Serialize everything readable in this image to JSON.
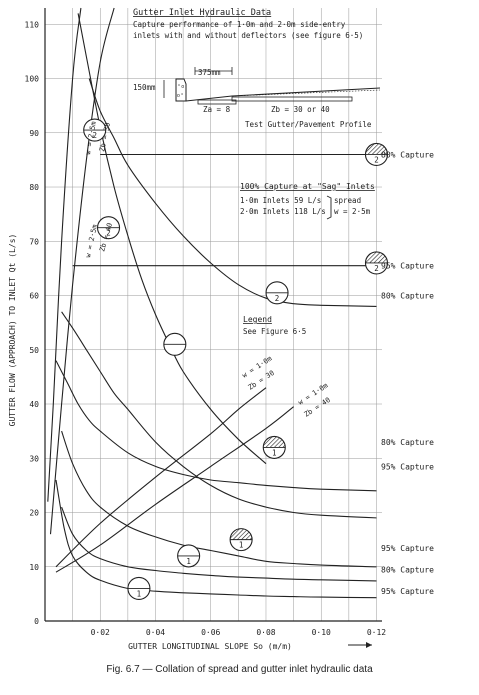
{
  "chart_data": {
    "type": "line",
    "xlabel": "GUTTER LONGITUDINAL SLOPE  So (m/m)",
    "ylabel": "GUTTER FLOW (APPROACH) TO INLET Qt (L/s)",
    "x_ticks": [
      "0·02",
      "0·04",
      "0·06",
      "0·08",
      "0·10",
      "0·12"
    ],
    "y_ticks": [
      "0",
      "10",
      "20",
      "30",
      "40",
      "50",
      "60",
      "70",
      "80",
      "90",
      "100",
      "110"
    ],
    "xlim": [
      0,
      0.122
    ],
    "ylim": [
      0,
      113
    ],
    "grid": true,
    "series": [
      {
        "name": "",
        "label": "80% Capture",
        "inlet": "2",
        "x": [
          0.016,
          0.02,
          0.025,
          0.03,
          0.04,
          0.05,
          0.06,
          0.07,
          0.08,
          0.09,
          0.1,
          0.12
        ],
        "y": [
          100,
          94,
          89,
          84,
          77,
          71,
          66,
          62,
          59.5,
          58.5,
          58.2,
          58
        ]
      },
      {
        "name": "",
        "label": "95% Capture",
        "inlet": "2",
        "x": [
          0.006,
          0.01,
          0.015,
          0.02,
          0.025,
          0.03,
          0.04,
          0.05,
          0.06,
          0.07,
          0.08,
          0.09,
          0.1,
          0.12
        ],
        "y": [
          57,
          54,
          50,
          46,
          42,
          39,
          33,
          28.5,
          25,
          22.5,
          21,
          20,
          19.5,
          19
        ]
      },
      {
        "name": "",
        "label": "80% Capture",
        "inlet": "1",
        "x": [
          0.004,
          0.008,
          0.012,
          0.016,
          0.02,
          0.03,
          0.04,
          0.05,
          0.06,
          0.07,
          0.08,
          0.09,
          0.1,
          0.12
        ],
        "y": [
          48,
          44,
          40,
          37,
          35,
          31,
          28.5,
          27,
          26,
          25.5,
          25,
          24.6,
          24.3,
          24
        ]
      },
      {
        "name": "",
        "label": "95% Capture",
        "inlet": "1",
        "x": [
          0.006,
          0.01,
          0.015,
          0.02,
          0.03,
          0.04,
          0.05,
          0.06,
          0.07,
          0.08,
          0.09,
          0.1,
          0.12
        ],
        "y": [
          35,
          29,
          24,
          21,
          17.5,
          15.5,
          14,
          13,
          12,
          11,
          10.6,
          10.3,
          10
        ]
      },
      {
        "name": "",
        "label": "",
        "inlet": "1",
        "x": [
          0.004,
          0.007,
          0.01,
          0.015,
          0.02,
          0.03,
          0.04,
          0.05,
          0.06,
          0.07,
          0.08,
          0.09,
          0.1,
          0.12
        ],
        "y": [
          26,
          17,
          12,
          9,
          7.5,
          6,
          5.5,
          5.2,
          5,
          4.8,
          4.6,
          4.5,
          4.4,
          4.3
        ]
      },
      {
        "name": "",
        "label": "",
        "inlet": "1",
        "x": [
          0.006,
          0.01,
          0.015,
          0.02,
          0.03,
          0.04,
          0.05,
          0.06,
          0.07,
          0.08,
          0.09,
          0.1,
          0.12
        ],
        "y": [
          21,
          16,
          13,
          11.5,
          10,
          9.3,
          8.8,
          8.4,
          8.1,
          7.9,
          7.7,
          7.6,
          7.4
        ]
      },
      {
        "name": "",
        "label": "",
        "inlet": "2",
        "x": [
          0.012,
          0.015,
          0.02,
          0.025,
          0.03,
          0.035,
          0.04,
          0.045,
          0.05,
          0.06,
          0.07,
          0.08
        ],
        "y": [
          112,
          104,
          91,
          80,
          71,
          63,
          56.5,
          51,
          46,
          39,
          33.5,
          29
        ]
      },
      {
        "name": "",
        "label": "80% Capture",
        "inlet": "2",
        "x": [
          0.02,
          0.12
        ],
        "y": [
          86,
          86
        ]
      },
      {
        "name": "",
        "label": "95% Capture",
        "inlet": "2",
        "x": [
          0.01,
          0.12
        ],
        "y": [
          65.5,
          65.5
        ]
      },
      {
        "name": "w = 2·5 m, Zb = 30",
        "x": [
          0.001,
          0.003,
          0.006,
          0.01,
          0.013
        ],
        "y": [
          22,
          40,
          70,
          100,
          113
        ]
      },
      {
        "name": "w = 2·5 m, Zb = 40",
        "x": [
          0.002,
          0.006,
          0.01,
          0.015,
          0.02,
          0.025
        ],
        "y": [
          16,
          40,
          62,
          85,
          103,
          113
        ]
      },
      {
        "name": "w = 1·0 m, Zb = 30",
        "x": [
          0.004,
          0.02,
          0.04,
          0.06,
          0.07,
          0.08
        ],
        "y": [
          10,
          18,
          26.5,
          34.5,
          39,
          43
        ]
      },
      {
        "name": "w = 1·0 m, Zb = 40",
        "x": [
          0.004,
          0.02,
          0.04,
          0.06,
          0.08,
          0.09
        ],
        "y": [
          9,
          14,
          21.5,
          28.5,
          35.5,
          39.5
        ]
      }
    ],
    "markers": [
      {
        "x": 0.018,
        "y": 90.5,
        "label": "2",
        "hatched": false
      },
      {
        "x": 0.023,
        "y": 72.5,
        "label": "2",
        "hatched": false
      },
      {
        "x": 0.047,
        "y": 51,
        "label": "",
        "hatched": false
      },
      {
        "x": 0.084,
        "y": 60.5,
        "label": "2",
        "hatched": false
      },
      {
        "x": 0.12,
        "y": 86,
        "label": "2",
        "hatched": true
      },
      {
        "x": 0.12,
        "y": 66,
        "label": "2",
        "hatched": true
      },
      {
        "x": 0.083,
        "y": 32,
        "label": "1",
        "hatched": true
      },
      {
        "x": 0.071,
        "y": 15,
        "label": "1",
        "hatched": true
      },
      {
        "x": 0.052,
        "y": 12,
        "label": "1",
        "hatched": false
      },
      {
        "x": 0.034,
        "y": 6,
        "label": "1",
        "hatched": false
      }
    ],
    "right_labels": [
      {
        "y": 86,
        "text": "80% Capture"
      },
      {
        "y": 65.5,
        "text": "95% Capture"
      },
      {
        "y": 60,
        "text": "80% Capture"
      },
      {
        "y": 33,
        "text": "80% Capture"
      },
      {
        "y": 28.5,
        "text": "95% Capture"
      },
      {
        "y": 13.5,
        "text": "95% Capture"
      },
      {
        "y": 9.5,
        "text": "80% Capture"
      },
      {
        "y": 5.5,
        "text": "95% Capture"
      }
    ],
    "annotations": {
      "header_title": "Gutter Inlet Hydraulic Data",
      "header_line1": "Capture performance of 1·0m and 2·0m side-entry",
      "header_line2": "inlets with and without deflectors (see figure 6·5)",
      "dim_width": "375mm",
      "dim_depth": "150mm",
      "za_label": "Za = 8",
      "zb_label": "Zb = 30 or 40",
      "profile_label": "Test Gutter/Pavement Profile",
      "sag_title": "100% Capture at \"Sag\" Inlets",
      "sag_row1": "1·0m  Inlets  59 L/s",
      "sag_row2": "2·0m  Inlets  118 L/s",
      "sag_spread": "spread",
      "sag_w": "w = 2·5m",
      "legend_title": "Legend",
      "legend_text": "See Figure 6·5",
      "curve_label_w25_30_w": "w = 2·5m",
      "curve_label_w25_30_z": "Zb = 30",
      "curve_label_w25_40_w": "w = 2·5m",
      "curve_label_w25_40_z": "Zb = 40",
      "curve_label_w10_30_w": "w = 1·0m",
      "curve_label_w10_30_z": "Zb = 30",
      "curve_label_w10_40_w": "w = 1·0m",
      "curve_label_w10_40_z": "Zb = 40"
    },
    "caption": "Fig. 6.7 — Collation of spread and gutter inlet hydraulic data",
    "colors": {
      "ink": "#222222",
      "grid": "#9a9a9a",
      "paper": "#ffffff"
    }
  }
}
